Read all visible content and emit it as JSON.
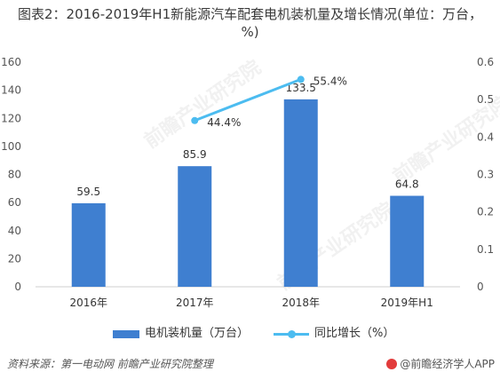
{
  "title": "图表2：2016-2019年H1新能源汽车配套电机装机量及增长情况(单位：万台，%)",
  "chart_data": {
    "type": "bar",
    "categories": [
      "2016年",
      "2017年",
      "2018年",
      "2019年H1"
    ],
    "series": [
      {
        "name": "电机装机量（万台）",
        "kind": "bar",
        "axis": "left",
        "values": [
          59.5,
          85.9,
          133.5,
          64.8
        ],
        "color": "#3f7fd0"
      },
      {
        "name": "同比增长（%）",
        "kind": "line",
        "axis": "right",
        "values": [
          null,
          0.444,
          0.554,
          null
        ],
        "labels": [
          "",
          "44.4%",
          "55.4%",
          ""
        ],
        "color": "#4cbcf0"
      }
    ],
    "bar_labels": [
      "59.5",
      "85.9",
      "133.5",
      "64.8"
    ],
    "y_left": {
      "lim": [
        0,
        160
      ],
      "ticks": [
        0,
        20,
        40,
        60,
        80,
        100,
        120,
        140,
        160
      ]
    },
    "y_right": {
      "lim": [
        0,
        0.6
      ],
      "ticks": [
        0,
        0.1,
        0.2,
        0.3,
        0.4,
        0.5,
        0.6
      ]
    },
    "grid": false,
    "legend": "bottom"
  },
  "legend": {
    "bar_label": "电机装机量（万台）",
    "line_label": "同比增长（%）"
  },
  "footer": {
    "source": "资料来源：第一电动网 前瞻产业研究院整理",
    "brand": "@前瞻经济学人APP"
  },
  "watermark": "前瞻产业研究院"
}
